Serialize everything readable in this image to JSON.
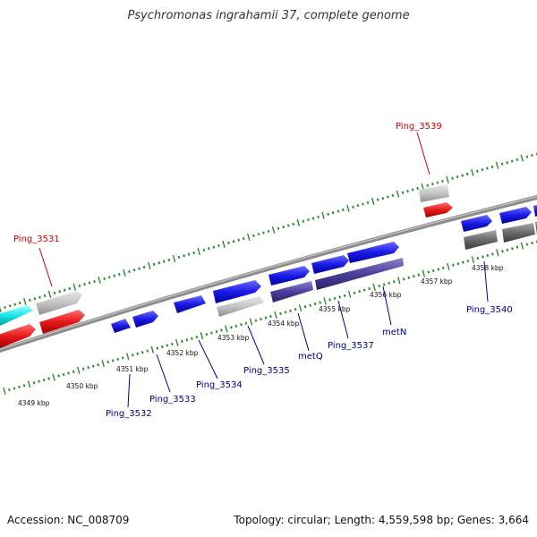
{
  "title": "Psychromonas ingrahamii 37, complete genome",
  "footer": {
    "accession": "Accession: NC_008709",
    "summary": "Topology: circular; Length: 4,559,598 bp; Genes: 3,664"
  },
  "colors": {
    "backbone": "#8c8c8c",
    "tick": "#2e8b2e",
    "gene_blue": "#1a1ae6",
    "gene_red": "#e61a1a",
    "gene_cyan": "#1ae6e6",
    "gene_lightgray": "#c4c4c4",
    "gene_darkgray": "#6b6b6b",
    "gene_slate": "#4a3f99",
    "label_blue": "#00008b",
    "label_red": "#cc0000"
  },
  "kbp_labels": [
    "4349 kbp",
    "4350 kbp",
    "4351 kbp",
    "4352 kbp",
    "4353 kbp",
    "4354 kbp",
    "4355 kbp",
    "4356 kbp",
    "4357 kbp",
    "4358 kbp"
  ],
  "gene_labels": [
    {
      "text": "Ping_3531",
      "color": "red"
    },
    {
      "text": "Ping_3539",
      "color": "red"
    },
    {
      "text": "Ping_3532",
      "color": "blue"
    },
    {
      "text": "Ping_3533",
      "color": "blue"
    },
    {
      "text": "Ping_3534",
      "color": "blue"
    },
    {
      "text": "Ping_3535",
      "color": "blue"
    },
    {
      "text": "metQ",
      "color": "blue"
    },
    {
      "text": "Ping_3537",
      "color": "blue"
    },
    {
      "text": "metN",
      "color": "blue"
    },
    {
      "text": "Ping_3540",
      "color": "blue"
    }
  ]
}
